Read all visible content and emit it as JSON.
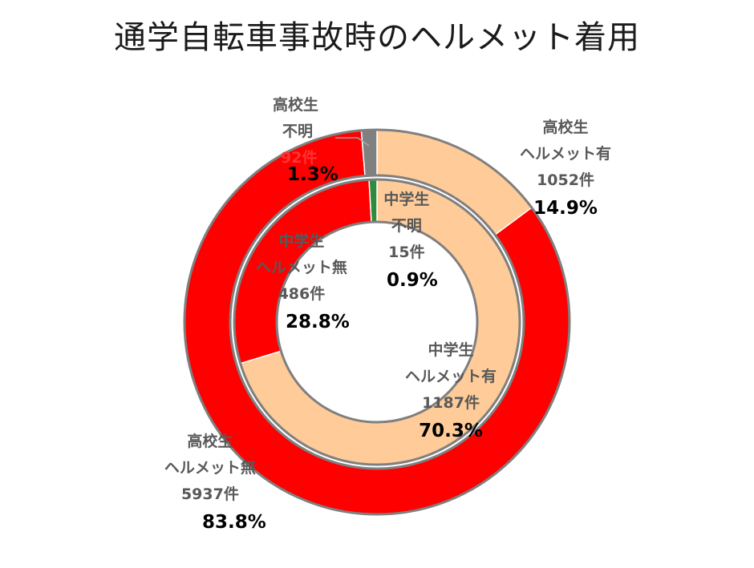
{
  "title": "通学自転車事故時のヘルメット着用",
  "colors": {
    "helmet_yes": "#ffcc99",
    "helmet_no": "#ff0000",
    "unknown_hs": "#808080",
    "unknown_ms": "#2e8b3e",
    "ring_border": "#7f7f7f"
  },
  "chart_data": {
    "type": "donut",
    "title": "通学自転車事故時のヘルメット着用",
    "series": [
      {
        "name": "高校生",
        "ring": "outer",
        "slices": [
          {
            "id": "hs_yes",
            "group": "高校生",
            "label": "ヘルメット有",
            "count": 1052,
            "count_label": "1052件",
            "percent": 14.9,
            "percent_label": "14.9%",
            "color": "#ffcc99"
          },
          {
            "id": "hs_no",
            "group": "高校生",
            "label": "ヘルメット無",
            "count": 5937,
            "count_label": "5937件",
            "percent": 83.8,
            "percent_label": "83.8%",
            "color": "#ff0000"
          },
          {
            "id": "hs_unknown",
            "group": "高校生",
            "label": "不明",
            "count": 92,
            "count_label": "92件",
            "percent": 1.3,
            "percent_label": "1.3%",
            "color": "#808080"
          }
        ]
      },
      {
        "name": "中学生",
        "ring": "inner",
        "slices": [
          {
            "id": "ms_yes",
            "group": "中学生",
            "label": "ヘルメット有",
            "count": 1187,
            "count_label": "1187件",
            "percent": 70.3,
            "percent_label": "70.3%",
            "color": "#ffcc99"
          },
          {
            "id": "ms_no",
            "group": "中学生",
            "label": "ヘルメット無",
            "count": 486,
            "count_label": "486件",
            "percent": 28.8,
            "percent_label": "28.8%",
            "color": "#ff0000"
          },
          {
            "id": "ms_unknown",
            "group": "中学生",
            "label": "不明",
            "count": 15,
            "count_label": "15件",
            "percent": 0.9,
            "percent_label": "0.9%",
            "color": "#2e8b3e"
          }
        ]
      }
    ]
  }
}
